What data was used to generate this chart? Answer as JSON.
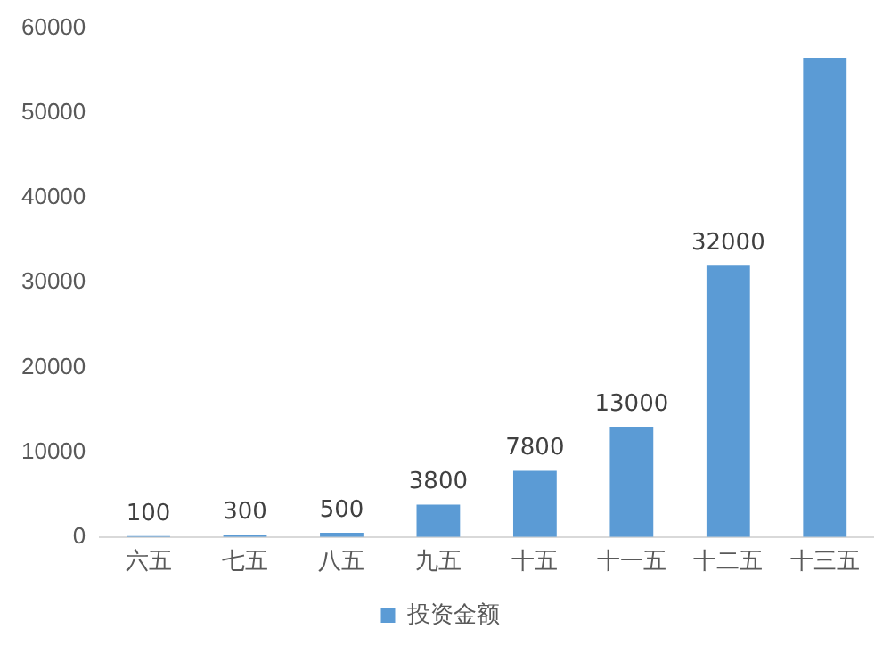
{
  "chart_data": {
    "type": "bar",
    "categories": [
      "六五",
      "七五",
      "八五",
      "九五",
      "十五",
      "十一五",
      "十二五",
      "十三五"
    ],
    "series": [
      {
        "name": "投资金额",
        "color": "#5b9bd5",
        "values": [
          100,
          300,
          500,
          3800,
          7800,
          13000,
          32000,
          56500
        ],
        "value_labels": [
          "100",
          "300",
          "500",
          "3800",
          "7800",
          "13000",
          "32000",
          null
        ]
      }
    ],
    "ylim": [
      0,
      60000
    ],
    "yticks": [
      0,
      10000,
      20000,
      30000,
      40000,
      50000,
      60000
    ],
    "grid": false,
    "legend": "bottom"
  }
}
